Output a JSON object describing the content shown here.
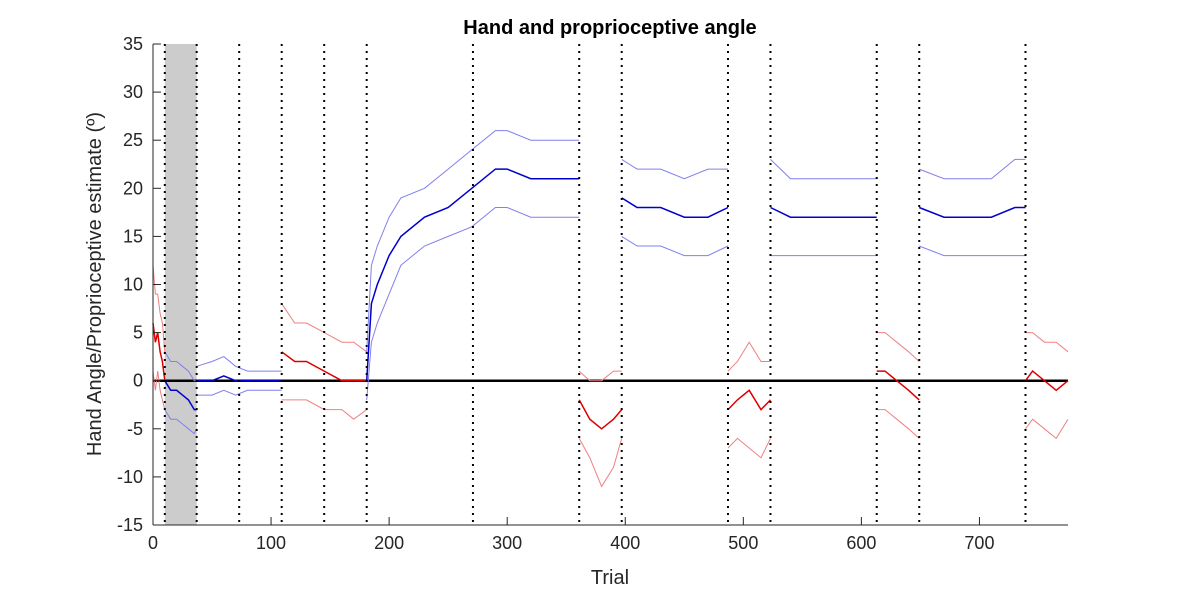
{
  "chart_data": {
    "type": "line",
    "title": "Hand and proprioceptive angle",
    "xlabel": "Trial",
    "ylabel": "Hand Angle/Proprioceptive estimate (º)",
    "xlim": [
      0,
      775
    ],
    "ylim": [
      -15,
      35
    ],
    "xticks": [
      0,
      100,
      200,
      300,
      400,
      500,
      600,
      700
    ],
    "yticks": [
      -15,
      -10,
      -5,
      0,
      5,
      10,
      15,
      20,
      25,
      30,
      35
    ],
    "grid": false,
    "legend": "none",
    "shaded_region": {
      "x": [
        10,
        37
      ],
      "color": "#cccccc"
    },
    "vertical_dotted_lines": [
      10,
      37,
      73,
      109,
      145,
      181,
      271,
      361,
      397,
      487,
      523,
      613,
      649,
      739
    ],
    "zero_line": 0,
    "colors": {
      "hand": "#0000cc",
      "hand_band": "#8080ee",
      "proprio": "#dd0000",
      "proprio_band": "#f08080",
      "zero": "#000000"
    },
    "series": [
      {
        "role": "proprioceptive",
        "color": "#dd0000",
        "x": [
          0,
          2,
          4,
          6,
          8,
          10
        ],
        "mean": [
          6,
          4,
          5,
          3,
          2,
          0
        ],
        "upper": [
          12,
          9,
          9,
          7,
          6,
          3
        ],
        "lower": [
          1,
          -1,
          1,
          -1,
          -2,
          -3
        ]
      },
      {
        "role": "hand",
        "color": "#0000cc",
        "x": [
          10,
          15,
          20,
          25,
          30,
          35,
          37
        ],
        "mean": [
          0,
          -1,
          -1,
          -1.5,
          -2,
          -3,
          -3
        ],
        "upper": [
          3,
          2,
          2,
          1.5,
          1,
          0,
          0
        ],
        "lower": [
          -3,
          -4,
          -4,
          -4.5,
          -5,
          -5.5,
          -5
        ]
      },
      {
        "role": "hand",
        "color": "#0000cc",
        "x": [
          37,
          50,
          60,
          70,
          80,
          90,
          100,
          109
        ],
        "mean": [
          0,
          0,
          0.5,
          0,
          0,
          0,
          0,
          0
        ],
        "upper": [
          1.5,
          2,
          2.5,
          1.5,
          1,
          1,
          1,
          1
        ],
        "lower": [
          -1.5,
          -1.5,
          -1,
          -1.5,
          -1,
          -1,
          -1,
          -1
        ]
      },
      {
        "role": "proprioceptive",
        "color": "#dd0000",
        "x": [
          109,
          120,
          130,
          145,
          160,
          170,
          181
        ],
        "mean": [
          3,
          2,
          2,
          1,
          0,
          0,
          0
        ],
        "upper": [
          8,
          6,
          6,
          5,
          4,
          4,
          3
        ],
        "lower": [
          -2,
          -2,
          -2,
          -3,
          -3,
          -4,
          -3
        ]
      },
      {
        "role": "hand",
        "color": "#0000cc",
        "x": [
          181,
          185,
          190,
          200,
          210,
          230,
          250,
          270,
          290,
          300,
          320,
          340,
          361
        ],
        "mean": [
          0,
          8,
          10,
          13,
          15,
          17,
          18,
          20,
          22,
          22,
          21,
          21,
          21
        ],
        "upper": [
          3,
          12,
          14,
          17,
          19,
          20,
          22,
          24,
          26,
          26,
          25,
          25,
          25
        ],
        "lower": [
          -2,
          4,
          6,
          9,
          12,
          14,
          15,
          16,
          18,
          18,
          17,
          17,
          17
        ]
      },
      {
        "role": "proprioceptive",
        "color": "#dd0000",
        "x": [
          361,
          370,
          380,
          390,
          397
        ],
        "mean": [
          -2,
          -4,
          -5,
          -4,
          -3
        ],
        "upper": [
          1,
          0,
          0,
          1,
          1
        ],
        "lower": [
          -6,
          -8,
          -11,
          -9,
          -6
        ]
      },
      {
        "role": "hand",
        "color": "#0000cc",
        "x": [
          397,
          410,
          430,
          450,
          470,
          487
        ],
        "mean": [
          19,
          18,
          18,
          17,
          17,
          18
        ],
        "upper": [
          23,
          22,
          22,
          21,
          22,
          22
        ],
        "lower": [
          15,
          14,
          14,
          13,
          13,
          14
        ]
      },
      {
        "role": "proprioceptive",
        "color": "#dd0000",
        "x": [
          487,
          495,
          505,
          515,
          523
        ],
        "mean": [
          -3,
          -2,
          -1,
          -3,
          -2
        ],
        "upper": [
          1,
          2,
          4,
          2,
          2
        ],
        "lower": [
          -7,
          -6,
          -7,
          -8,
          -6
        ]
      },
      {
        "role": "hand",
        "color": "#0000cc",
        "x": [
          523,
          540,
          560,
          580,
          600,
          613
        ],
        "mean": [
          18,
          17,
          17,
          17,
          17,
          17
        ],
        "upper": [
          23,
          21,
          21,
          21,
          21,
          21
        ],
        "lower": [
          13,
          13,
          13,
          13,
          13,
          13
        ]
      },
      {
        "role": "proprioceptive",
        "color": "#dd0000",
        "x": [
          613,
          620,
          630,
          640,
          649
        ],
        "mean": [
          1,
          1,
          0,
          -1,
          -2
        ],
        "upper": [
          5,
          5,
          4,
          3,
          2
        ],
        "lower": [
          -3,
          -3,
          -4,
          -5,
          -6
        ]
      },
      {
        "role": "hand",
        "color": "#0000cc",
        "x": [
          649,
          670,
          690,
          710,
          730,
          739
        ],
        "mean": [
          18,
          17,
          17,
          17,
          18,
          18
        ],
        "upper": [
          22,
          21,
          21,
          21,
          23,
          23
        ],
        "lower": [
          14,
          13,
          13,
          13,
          13,
          13
        ]
      },
      {
        "role": "proprioceptive",
        "color": "#dd0000",
        "x": [
          739,
          745,
          755,
          765,
          775
        ],
        "mean": [
          0,
          1,
          0,
          -1,
          0
        ],
        "upper": [
          5,
          5,
          4,
          4,
          3
        ],
        "lower": [
          -5,
          -4,
          -5,
          -6,
          -4
        ]
      }
    ]
  }
}
